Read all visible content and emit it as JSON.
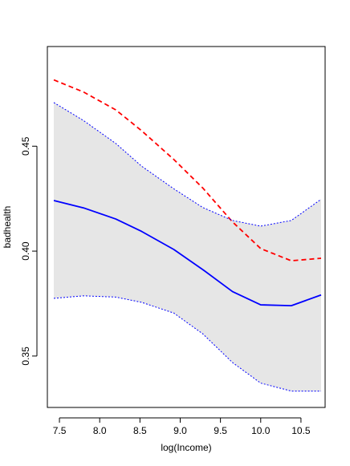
{
  "chart_data": {
    "type": "line",
    "title": "",
    "xlabel": "log(Income)",
    "ylabel": "badhealth",
    "xlim": [
      7.35,
      10.8
    ],
    "ylim": [
      0.3255,
      0.4975
    ],
    "x_ticks": [
      7.5,
      8.0,
      8.5,
      9.0,
      9.5,
      10.0,
      10.5
    ],
    "x_tick_labels": [
      "7.5",
      "8.0",
      "8.5",
      "9.0",
      "9.5",
      "10.0",
      "10.5"
    ],
    "y_ticks": [
      0.35,
      0.4,
      0.45
    ],
    "y_tick_labels": [
      "0.35",
      "0.40",
      "0.45"
    ],
    "grid": false,
    "legend": "none",
    "band": {
      "fill": "#e6e6e6",
      "x": [
        7.43,
        7.8,
        8.2,
        8.52,
        8.92,
        9.28,
        9.65,
        10.0,
        10.38,
        10.75
      ],
      "lower": [
        0.3775,
        0.3787,
        0.3781,
        0.3756,
        0.3705,
        0.3606,
        0.3469,
        0.3371,
        0.3333,
        0.3333
      ],
      "upper": [
        0.4708,
        0.4622,
        0.4513,
        0.4405,
        0.4297,
        0.4208,
        0.4146,
        0.4119,
        0.4146,
        0.4247
      ]
    },
    "series": [
      {
        "color": "#0000ff",
        "style": "solid",
        "x": [
          7.43,
          7.8,
          8.2,
          8.52,
          8.92,
          9.28,
          9.65,
          10.0,
          10.38,
          10.75
        ],
        "y": [
          0.4241,
          0.4206,
          0.4153,
          0.4094,
          0.4008,
          0.3912,
          0.3807,
          0.3744,
          0.374,
          0.3791
        ]
      },
      {
        "color": "#ff0000",
        "style": "dashed",
        "x": [
          7.43,
          7.8,
          8.2,
          8.52,
          8.92,
          9.28,
          9.65,
          10.0,
          10.38,
          10.75
        ],
        "y": [
          0.4816,
          0.4758,
          0.4673,
          0.4574,
          0.4437,
          0.4301,
          0.4139,
          0.4012,
          0.3954,
          0.3966
        ]
      },
      {
        "color": "#0000ff",
        "style": "dotted",
        "x": [
          7.43,
          7.8,
          8.2,
          8.52,
          8.92,
          9.28,
          9.65,
          10.0,
          10.38,
          10.75
        ],
        "y": [
          0.3775,
          0.3787,
          0.3781,
          0.3756,
          0.3705,
          0.3606,
          0.3469,
          0.3371,
          0.3333,
          0.3333
        ]
      },
      {
        "color": "#0000ff",
        "style": "dotted",
        "x": [
          7.43,
          7.8,
          8.2,
          8.52,
          8.92,
          9.28,
          9.65,
          10.0,
          10.38,
          10.75
        ],
        "y": [
          0.4708,
          0.4622,
          0.4513,
          0.4405,
          0.4297,
          0.4208,
          0.4146,
          0.4119,
          0.4146,
          0.4247
        ]
      }
    ]
  }
}
